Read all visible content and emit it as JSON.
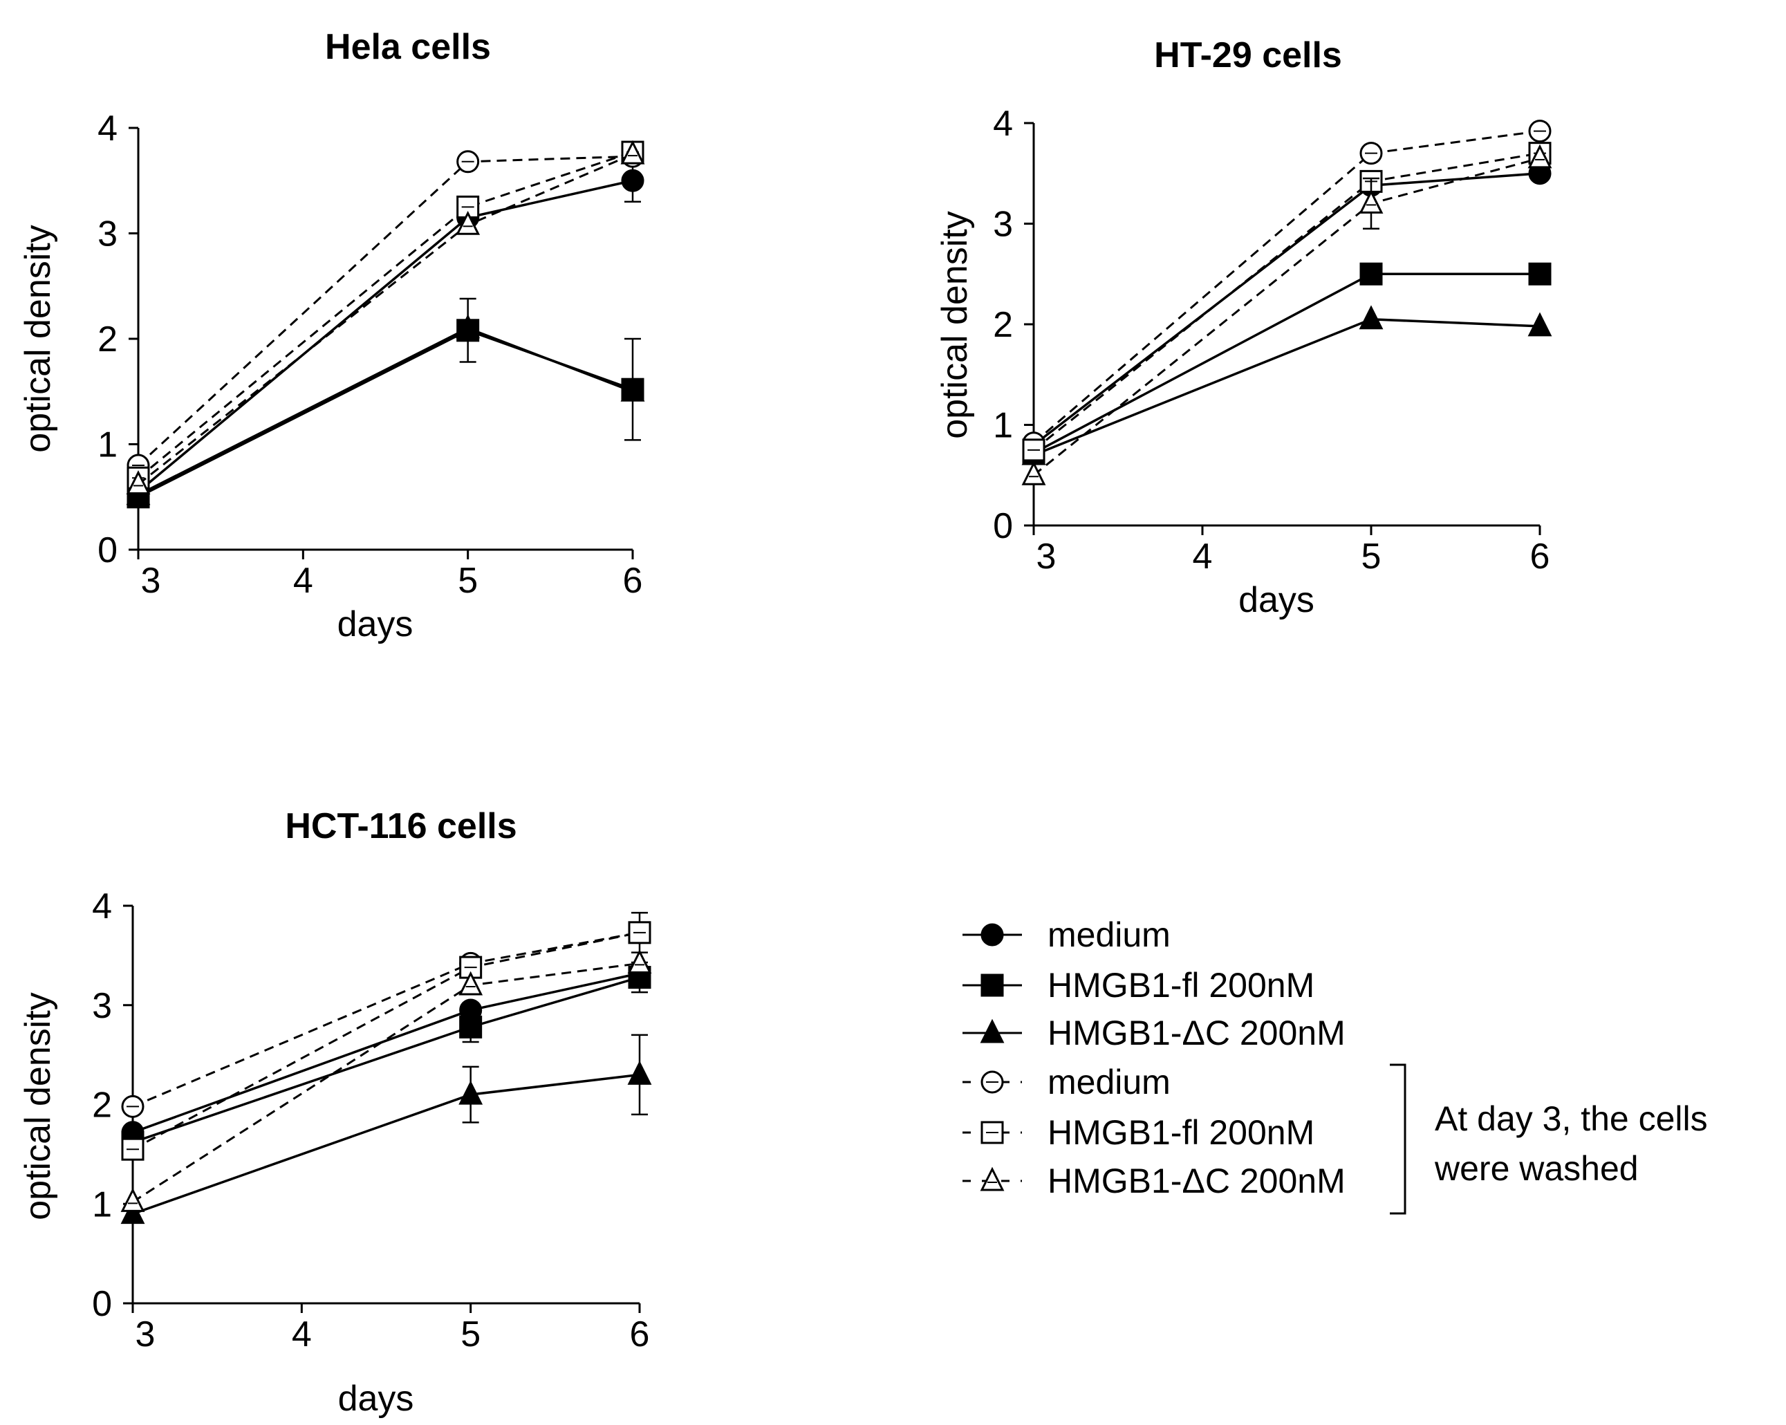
{
  "chart_data": [
    {
      "type": "line",
      "title": "Hela cells",
      "xlabel": "days",
      "ylabel": "optical density",
      "x": [
        3,
        5,
        6
      ],
      "xticks": [
        3,
        4,
        5,
        6
      ],
      "yticks": [
        0,
        1,
        2,
        3,
        4
      ],
      "xlim": [
        3,
        6
      ],
      "ylim": [
        0,
        4
      ],
      "series": [
        {
          "name": "medium",
          "marker": "circle",
          "filled": true,
          "dashed": false,
          "values": [
            0.55,
            3.15,
            3.5
          ],
          "err": [
            0.05,
            0.05,
            0.2
          ]
        },
        {
          "name": "HMGB1-fl 200nM",
          "marker": "square",
          "filled": true,
          "dashed": false,
          "values": [
            0.5,
            2.08,
            1.52
          ],
          "err": [
            0.05,
            0.3,
            0.48
          ]
        },
        {
          "name": "HMGB1-ΔC 200nM",
          "marker": "triangle",
          "filled": true,
          "dashed": false,
          "values": [
            0.52,
            2.1,
            1.5
          ],
          "err": [
            0.05,
            0.05,
            0.05
          ]
        },
        {
          "name": "medium (washed)",
          "marker": "circle",
          "filled": false,
          "dashed": true,
          "values": [
            0.8,
            3.68,
            3.73
          ],
          "err": [
            0.05,
            0.05,
            0.05
          ]
        },
        {
          "name": "HMGB1-fl 200nM (washed)",
          "marker": "square",
          "filled": false,
          "dashed": true,
          "values": [
            0.68,
            3.25,
            3.77
          ],
          "err": [
            0.05,
            0.05,
            0.05
          ]
        },
        {
          "name": "HMGB1-ΔC 200nM (washed)",
          "marker": "triangle",
          "filled": false,
          "dashed": true,
          "values": [
            0.62,
            3.08,
            3.75
          ],
          "err": [
            0.05,
            0.05,
            0.05
          ]
        }
      ]
    },
    {
      "type": "line",
      "title": "HT-29 cells",
      "xlabel": "days",
      "ylabel": "optical density",
      "x": [
        3,
        5,
        6
      ],
      "xticks": [
        3,
        4,
        5,
        6
      ],
      "yticks": [
        0,
        1,
        2,
        3,
        4
      ],
      "xlim": [
        3,
        6
      ],
      "ylim": [
        0,
        4
      ],
      "series": [
        {
          "name": "medium",
          "marker": "circle",
          "filled": true,
          "dashed": false,
          "values": [
            0.8,
            3.38,
            3.5
          ],
          "err": [
            0.05,
            0.05,
            0.05
          ]
        },
        {
          "name": "HMGB1-fl 200nM",
          "marker": "square",
          "filled": true,
          "dashed": false,
          "values": [
            0.72,
            2.5,
            2.5
          ],
          "err": [
            0.05,
            0.05,
            0.05
          ]
        },
        {
          "name": "HMGB1-ΔC 200nM",
          "marker": "triangle",
          "filled": true,
          "dashed": false,
          "values": [
            0.7,
            2.05,
            1.98
          ],
          "err": [
            0.05,
            0.05,
            0.05
          ]
        },
        {
          "name": "medium (washed)",
          "marker": "circle",
          "filled": false,
          "dashed": true,
          "values": [
            0.82,
            3.7,
            3.92
          ],
          "err": [
            0.05,
            0.05,
            0.05
          ]
        },
        {
          "name": "HMGB1-fl 200nM (washed)",
          "marker": "square",
          "filled": false,
          "dashed": true,
          "values": [
            0.75,
            3.42,
            3.7
          ],
          "err": [
            0.05,
            0.05,
            0.05
          ]
        },
        {
          "name": "HMGB1-ΔC 200nM (washed)",
          "marker": "triangle",
          "filled": false,
          "dashed": true,
          "values": [
            0.5,
            3.2,
            3.65
          ],
          "err": [
            0.05,
            0.25,
            0.05
          ]
        }
      ]
    },
    {
      "type": "line",
      "title": "HCT-116 cells",
      "xlabel": "days",
      "ylabel": "optical density",
      "x": [
        3,
        5,
        6
      ],
      "xticks": [
        3,
        4,
        5,
        6
      ],
      "yticks": [
        0,
        1,
        2,
        3,
        4
      ],
      "xlim": [
        3,
        6
      ],
      "ylim": [
        0,
        4
      ],
      "series": [
        {
          "name": "medium",
          "marker": "circle",
          "filled": true,
          "dashed": false,
          "values": [
            1.72,
            2.95,
            3.32
          ],
          "err": [
            0.05,
            0.05,
            0.05
          ]
        },
        {
          "name": "HMGB1-fl 200nM",
          "marker": "square",
          "filled": true,
          "dashed": false,
          "values": [
            1.62,
            2.78,
            3.28
          ],
          "err": [
            0.05,
            0.15,
            0.15
          ]
        },
        {
          "name": "HMGB1-ΔC 200nM",
          "marker": "triangle",
          "filled": true,
          "dashed": false,
          "values": [
            0.9,
            2.1,
            2.3
          ],
          "err": [
            0.05,
            0.28,
            0.4
          ]
        },
        {
          "name": "medium (washed)",
          "marker": "circle",
          "filled": false,
          "dashed": true,
          "values": [
            1.98,
            3.42,
            3.73
          ],
          "err": [
            0.05,
            0.05,
            0.05
          ]
        },
        {
          "name": "HMGB1-fl 200nM (washed)",
          "marker": "square",
          "filled": false,
          "dashed": true,
          "values": [
            1.55,
            3.38,
            3.73
          ],
          "err": [
            0.05,
            0.05,
            0.2
          ]
        },
        {
          "name": "HMGB1-ΔC 200nM (washed)",
          "marker": "triangle",
          "filled": false,
          "dashed": true,
          "values": [
            1.02,
            3.2,
            3.42
          ],
          "err": [
            0.05,
            0.05,
            0.05
          ]
        }
      ]
    }
  ],
  "legend": {
    "items": [
      {
        "label": "medium",
        "marker": "circle",
        "filled": true,
        "dashed": false
      },
      {
        "label": "HMGB1-fl 200nM",
        "marker": "square",
        "filled": true,
        "dashed": false
      },
      {
        "label": "HMGB1-ΔC 200nM",
        "marker": "triangle",
        "filled": true,
        "dashed": false
      },
      {
        "label": "medium",
        "marker": "circle",
        "filled": false,
        "dashed": true
      },
      {
        "label": "HMGB1-fl 200nM",
        "marker": "square",
        "filled": false,
        "dashed": true
      },
      {
        "label": "HMGB1-ΔC 200nM",
        "marker": "triangle",
        "filled": false,
        "dashed": true
      }
    ],
    "bracket_note_line1": "At day 3, the cells",
    "bracket_note_line2": "were washed"
  }
}
